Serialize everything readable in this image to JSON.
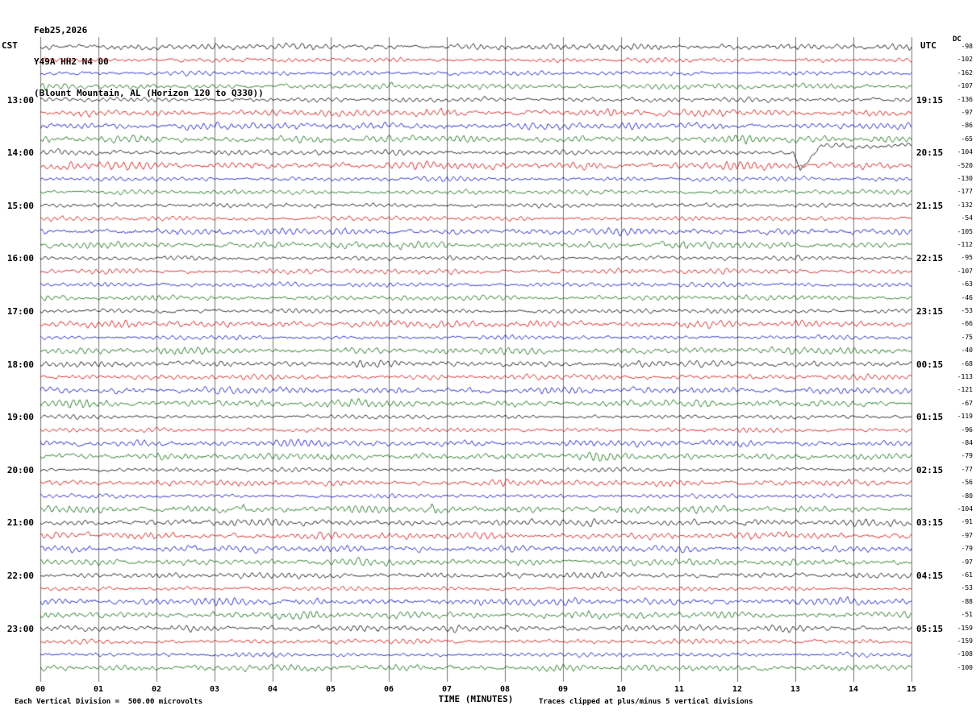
{
  "title": {
    "date": "Feb25,2026",
    "station": "Y49A HH2 N4 00",
    "location": "(Blount Mountain, AL (Horizon 120 to Q330))"
  },
  "axes": {
    "left_header": "CST",
    "right_header": "UTC",
    "dc_header": "DC",
    "x_label": "TIME (MINUTES)",
    "x_ticks": [
      "00",
      "01",
      "02",
      "03",
      "04",
      "05",
      "06",
      "07",
      "08",
      "09",
      "10",
      "11",
      "12",
      "13",
      "14",
      "15"
    ]
  },
  "left_times": [
    "13:00",
    "14:00",
    "15:00",
    "16:00",
    "17:00",
    "18:00",
    "19:00",
    "20:00",
    "21:00",
    "22:00",
    "23:00"
  ],
  "right_times": [
    "19:15",
    "20:15",
    "21:15",
    "22:15",
    "23:15",
    "00:15",
    "01:15",
    "02:15",
    "03:15",
    "04:15",
    "05:15"
  ],
  "footer": {
    "left": "Each Vertical Division =  500.00 microvolts",
    "right": "Traces clipped at plus/minus 5 vertical divisions"
  },
  "colors": {
    "trace_cycle": [
      "#000000",
      "#cc0000",
      "#0000bb",
      "#006600"
    ],
    "grid": "#3c3c3c",
    "background": "#ffffff"
  },
  "chart_data": {
    "type": "line",
    "subtype": "helicorder-seismogram",
    "title": "Y49A HH2 N4 00 (Blount Mountain, AL) Feb25,2026",
    "xlabel": "TIME (MINUTES)",
    "x_range": [
      0,
      15
    ],
    "x_ticks": [
      "00",
      "01",
      "02",
      "03",
      "04",
      "05",
      "06",
      "07",
      "08",
      "09",
      "10",
      "11",
      "12",
      "13",
      "14",
      "15"
    ],
    "grid": "vertical gridlines at every minute",
    "minutes_per_trace": 15,
    "traces_per_hour": 4,
    "n_traces": 48,
    "trace_color_cycle": [
      "black",
      "red",
      "blue",
      "green"
    ],
    "first_trace_start_cst": "12:00",
    "last_trace_start_cst": "23:45",
    "left_axis_times_cst": [
      "13:00",
      "14:00",
      "15:00",
      "16:00",
      "17:00",
      "18:00",
      "19:00",
      "20:00",
      "21:00",
      "22:00",
      "23:00"
    ],
    "right_axis_times_utc": [
      "19:15",
      "20:15",
      "21:15",
      "22:15",
      "23:15",
      "00:15",
      "01:15",
      "02:15",
      "03:15",
      "04:15",
      "05:15"
    ],
    "vertical_division_microvolts": 500.0,
    "clip_divisions": 5,
    "dc_offsets_microvolts": [
      -98,
      -102,
      -162,
      -107,
      -136,
      -97,
      -86,
      -65,
      -104,
      -520,
      -130,
      -177,
      -132,
      -54,
      -105,
      -112,
      -95,
      -107,
      -63,
      -46,
      -53,
      -66,
      -75,
      -40,
      -68,
      -113,
      -121,
      -67,
      -119,
      -96,
      -84,
      -79,
      -77,
      -56,
      -80,
      -104,
      -91,
      -97,
      -79,
      -97,
      -61,
      -53,
      -88,
      -51,
      -159,
      -159,
      -108,
      -100
    ],
    "waveform_note": "continuous low-amplitude background microseism noise on all 48 traces",
    "events": [
      {
        "trace_index": 8,
        "trace_start_cst": "14:00",
        "color": "black",
        "minute": 13.0,
        "description": "sharp downward transient followed by sustained raised baseline to end of trace"
      },
      {
        "trace_index": 9,
        "trace_start_cst": "14:15",
        "color": "red",
        "minute": null,
        "description": "slightly elevated noise amplitude, DC offset -520"
      },
      {
        "trace_index": 35,
        "trace_start_cst": "20:45",
        "color": "green",
        "minute": 6.75,
        "description": "brief spike; smaller spike near minute 3.5"
      }
    ]
  }
}
